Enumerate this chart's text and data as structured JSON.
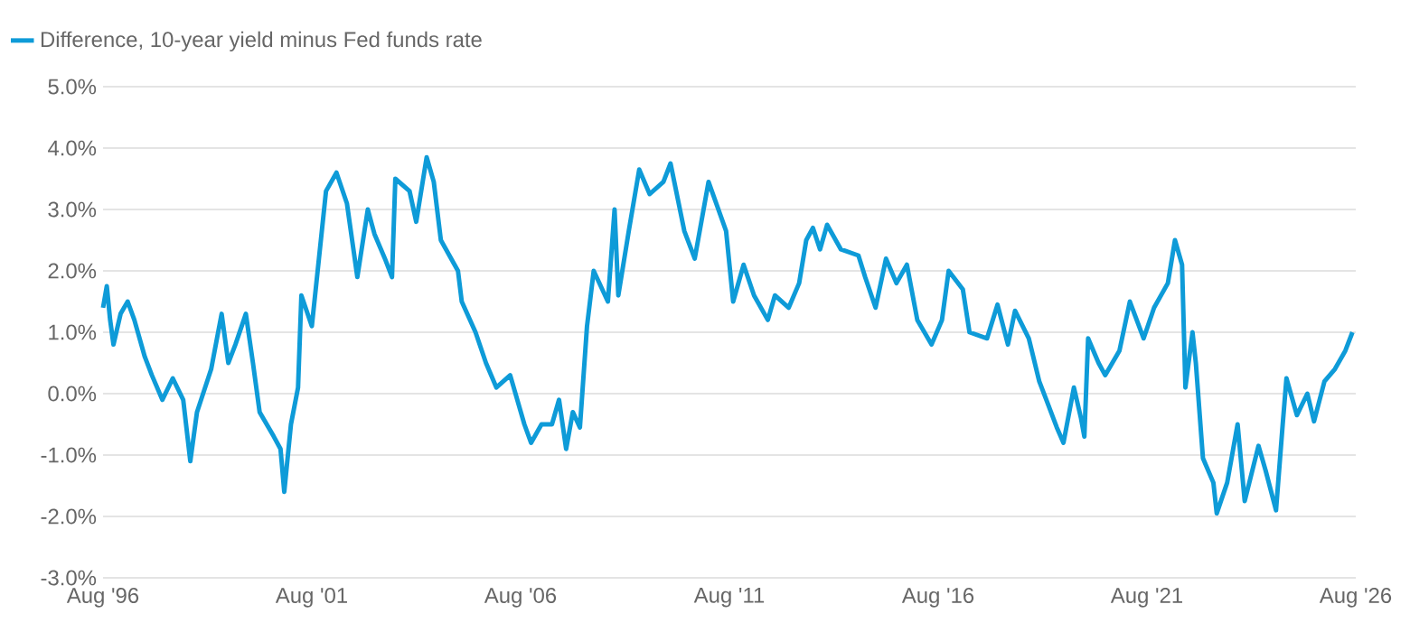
{
  "chart_data": {
    "type": "line",
    "x": [
      "1996-08",
      "1996-09",
      "1996-10",
      "1996-11",
      "1997-01",
      "1997-03",
      "1997-05",
      "1997-08",
      "1997-10",
      "1998-01",
      "1998-04",
      "1998-07",
      "1998-09",
      "1998-11",
      "1999-03",
      "1999-06",
      "1999-08",
      "1999-10",
      "2000-01",
      "2000-03",
      "2000-05",
      "2000-09",
      "2000-11",
      "2000-12",
      "2001-02",
      "2001-04",
      "2001-05",
      "2001-08",
      "2001-10",
      "2001-12",
      "2002-03",
      "2002-06",
      "2002-09",
      "2002-12",
      "2003-02",
      "2003-05",
      "2003-07",
      "2003-08",
      "2003-12",
      "2004-02",
      "2004-05",
      "2004-07",
      "2004-09",
      "2005-02",
      "2005-03",
      "2005-07",
      "2005-10",
      "2006-01",
      "2006-05",
      "2006-09",
      "2006-11",
      "2007-02",
      "2007-05",
      "2007-07",
      "2007-09",
      "2007-11",
      "2008-01",
      "2008-03",
      "2008-05",
      "2008-09",
      "2008-11",
      "2008-12",
      "2009-03",
      "2009-06",
      "2009-09",
      "2010-01",
      "2010-03",
      "2010-07",
      "2010-10",
      "2011-02",
      "2011-07",
      "2011-09",
      "2011-12",
      "2012-03",
      "2012-07",
      "2012-09",
      "2013-01",
      "2013-04",
      "2013-06",
      "2013-08",
      "2013-10",
      "2013-12",
      "2014-04",
      "2014-09",
      "2014-11",
      "2015-02",
      "2015-05",
      "2015-08",
      "2015-11",
      "2016-02",
      "2016-06",
      "2016-09",
      "2016-11",
      "2017-03",
      "2017-05",
      "2017-10",
      "2018-01",
      "2018-04",
      "2018-06",
      "2018-10",
      "2019-01",
      "2019-03",
      "2019-06",
      "2019-08",
      "2019-11",
      "2020-01",
      "2020-02",
      "2020-03",
      "2020-06",
      "2020-08",
      "2020-12",
      "2021-03",
      "2021-07",
      "2021-10",
      "2022-02",
      "2022-04",
      "2022-06",
      "2022-07",
      "2022-09",
      "2022-10",
      "2022-12",
      "2023-03",
      "2023-04",
      "2023-07",
      "2023-10",
      "2023-12",
      "2024-04",
      "2024-06",
      "2024-09",
      "2024-11",
      "2024-12",
      "2025-03",
      "2025-06",
      "2025-08",
      "2025-11",
      "2026-02",
      "2026-05",
      "2026-07"
    ],
    "series": [
      {
        "name": "Difference, 10-year yield minus Fed funds rate",
        "color": "#0e9bd8",
        "values": [
          1.4,
          1.75,
          1.2,
          0.8,
          1.3,
          1.5,
          1.2,
          0.6,
          0.3,
          -0.1,
          0.25,
          -0.1,
          -1.1,
          -0.3,
          0.4,
          1.3,
          0.5,
          0.8,
          1.3,
          0.5,
          -0.3,
          -0.7,
          -0.9,
          -1.6,
          -0.5,
          0.1,
          1.6,
          1.1,
          2.2,
          3.3,
          3.6,
          3.1,
          1.9,
          3.0,
          2.6,
          2.2,
          1.9,
          3.5,
          3.3,
          2.8,
          3.85,
          3.45,
          2.5,
          2.0,
          1.5,
          1.0,
          0.5,
          0.1,
          0.3,
          -0.5,
          -0.8,
          -0.5,
          -0.5,
          -0.1,
          -0.9,
          -0.3,
          -0.55,
          1.1,
          2.0,
          1.5,
          3.0,
          1.6,
          2.65,
          3.65,
          3.25,
          3.45,
          3.75,
          2.65,
          2.2,
          3.45,
          2.65,
          1.5,
          2.1,
          1.6,
          1.2,
          1.6,
          1.4,
          1.8,
          2.5,
          2.7,
          2.35,
          2.75,
          2.35,
          2.25,
          1.9,
          1.4,
          2.2,
          1.8,
          2.1,
          1.2,
          0.8,
          1.2,
          2.0,
          1.7,
          1.0,
          0.9,
          1.45,
          0.8,
          1.35,
          0.9,
          0.2,
          -0.1,
          -0.55,
          -0.8,
          0.1,
          -0.4,
          -0.7,
          0.9,
          0.5,
          0.3,
          0.7,
          1.5,
          0.9,
          1.4,
          1.8,
          2.5,
          2.1,
          0.1,
          1.0,
          0.5,
          -1.05,
          -1.45,
          -1.95,
          -1.45,
          -0.5,
          -1.75,
          -0.85,
          -1.25,
          -1.9,
          -0.5,
          0.25,
          -0.35,
          0.0,
          -0.45,
          0.2,
          0.4,
          0.7,
          1.0
        ]
      }
    ],
    "xlim": [
      "1996-08",
      "2026-08"
    ],
    "xticks": [
      {
        "value": "1996-08",
        "label": "Aug '96"
      },
      {
        "value": "2001-08",
        "label": "Aug '01"
      },
      {
        "value": "2006-08",
        "label": "Aug '06"
      },
      {
        "value": "2011-08",
        "label": "Aug '11"
      },
      {
        "value": "2016-08",
        "label": "Aug '16"
      },
      {
        "value": "2021-08",
        "label": "Aug '21"
      },
      {
        "value": "2026-08",
        "label": "Aug '26"
      }
    ],
    "ylim": [
      -3,
      5
    ],
    "yticks": [
      {
        "value": -3,
        "label": "-3.0%"
      },
      {
        "value": -2,
        "label": "-2.0%"
      },
      {
        "value": -1,
        "label": "-1.0%"
      },
      {
        "value": 0,
        "label": "0.0%"
      },
      {
        "value": 1,
        "label": "1.0%"
      },
      {
        "value": 2,
        "label": "2.0%"
      },
      {
        "value": 3,
        "label": "3.0%"
      },
      {
        "value": 4,
        "label": "4.0%"
      },
      {
        "value": 5,
        "label": "5.0%"
      }
    ],
    "grid": "y",
    "legend": "top left",
    "marker": "none",
    "line_style": "solid"
  }
}
